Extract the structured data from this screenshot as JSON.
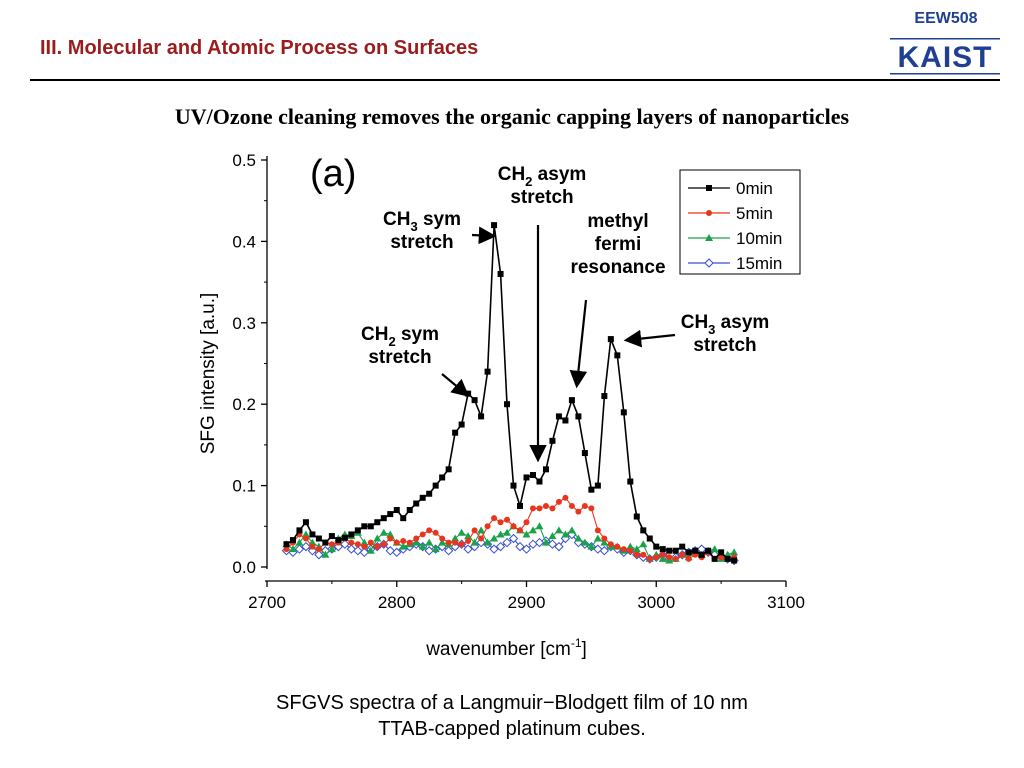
{
  "header": {
    "course_code": "EEW508",
    "logo_text": "KAIST",
    "section_title": "III. Molecular and Atomic Process on Surfaces"
  },
  "slide": {
    "heading": "UV/Ozone cleaning removes the organic capping layers of nanoparticles",
    "caption_line1": "SFGVS spectra of a Langmuir−Blodgett film of 10 nm",
    "caption_line2": "TTAB-capped platinum cubes."
  },
  "colors": {
    "section_title": "#9b1c1c",
    "course_code": "#1f3f93",
    "logo": "#1f3f93",
    "series_0min": "#000000",
    "series_5min": "#e8351e",
    "series_10min": "#1aa24a",
    "series_15min": "#3a4fd0"
  },
  "chart_data": {
    "type": "line",
    "panel_label": "(a)",
    "xlabel": "wavenumber [cm",
    "xlabel_sup": "-1",
    "xlabel_end": "]",
    "ylabel": "SFG intensity [a.u.]",
    "xlim": [
      2700,
      3100
    ],
    "ylim": [
      0.0,
      0.5
    ],
    "x_ticks": [
      2700,
      2800,
      2900,
      3000,
      3100
    ],
    "y_ticks": [
      0.0,
      0.1,
      0.2,
      0.3,
      0.4,
      0.5
    ],
    "x_tick_labels": [
      "2700",
      "2800",
      "2900",
      "3000",
      "3100"
    ],
    "y_tick_labels": [
      "0.0",
      "0.1",
      "0.2",
      "0.3",
      "0.4",
      "0.5"
    ],
    "legend_position": "top-right",
    "series": [
      {
        "name": "0min",
        "color": "#000000",
        "marker": "square",
        "x": [
          2715,
          2720,
          2725,
          2730,
          2735,
          2740,
          2745,
          2750,
          2755,
          2760,
          2765,
          2770,
          2775,
          2780,
          2785,
          2790,
          2795,
          2800,
          2805,
          2810,
          2815,
          2820,
          2825,
          2830,
          2835,
          2840,
          2845,
          2850,
          2855,
          2860,
          2865,
          2870,
          2875,
          2880,
          2885,
          2890,
          2895,
          2900,
          2905,
          2910,
          2915,
          2920,
          2925,
          2930,
          2935,
          2940,
          2945,
          2950,
          2955,
          2960,
          2965,
          2970,
          2975,
          2980,
          2985,
          2990,
          2995,
          3000,
          3005,
          3010,
          3015,
          3020,
          3025,
          3030,
          3035,
          3040,
          3045,
          3050,
          3055,
          3060
        ],
        "y": [
          0.028,
          0.033,
          0.045,
          0.055,
          0.04,
          0.035,
          0.03,
          0.038,
          0.033,
          0.036,
          0.04,
          0.045,
          0.05,
          0.05,
          0.055,
          0.06,
          0.065,
          0.07,
          0.06,
          0.07,
          0.078,
          0.085,
          0.09,
          0.1,
          0.11,
          0.12,
          0.165,
          0.175,
          0.213,
          0.205,
          0.185,
          0.24,
          0.42,
          0.36,
          0.2,
          0.1,
          0.075,
          0.11,
          0.113,
          0.105,
          0.12,
          0.155,
          0.185,
          0.18,
          0.205,
          0.185,
          0.14,
          0.095,
          0.1,
          0.21,
          0.28,
          0.26,
          0.19,
          0.105,
          0.062,
          0.045,
          0.035,
          0.025,
          0.022,
          0.02,
          0.02,
          0.025,
          0.018,
          0.02,
          0.015,
          0.02,
          0.01,
          0.018,
          0.01,
          0.008
        ]
      },
      {
        "name": "5min",
        "color": "#e8351e",
        "marker": "circle",
        "x": [
          2715,
          2720,
          2725,
          2730,
          2735,
          2740,
          2745,
          2750,
          2755,
          2760,
          2765,
          2770,
          2775,
          2780,
          2785,
          2790,
          2795,
          2800,
          2805,
          2810,
          2815,
          2820,
          2825,
          2830,
          2835,
          2840,
          2845,
          2850,
          2855,
          2860,
          2865,
          2870,
          2875,
          2880,
          2885,
          2890,
          2895,
          2900,
          2905,
          2910,
          2915,
          2920,
          2925,
          2930,
          2935,
          2940,
          2945,
          2950,
          2955,
          2960,
          2965,
          2970,
          2975,
          2980,
          2985,
          2990,
          2995,
          3000,
          3005,
          3010,
          3015,
          3020,
          3025,
          3030,
          3035,
          3040,
          3045,
          3050,
          3055,
          3060
        ],
        "y": [
          0.022,
          0.03,
          0.04,
          0.035,
          0.025,
          0.022,
          0.03,
          0.028,
          0.03,
          0.035,
          0.03,
          0.028,
          0.025,
          0.03,
          0.025,
          0.028,
          0.035,
          0.03,
          0.032,
          0.03,
          0.035,
          0.04,
          0.045,
          0.042,
          0.035,
          0.03,
          0.03,
          0.028,
          0.032,
          0.045,
          0.035,
          0.05,
          0.06,
          0.055,
          0.058,
          0.05,
          0.045,
          0.055,
          0.072,
          0.072,
          0.075,
          0.072,
          0.08,
          0.085,
          0.075,
          0.068,
          0.075,
          0.072,
          0.045,
          0.035,
          0.028,
          0.025,
          0.022,
          0.02,
          0.015,
          0.015,
          0.01,
          0.012,
          0.015,
          0.012,
          0.01,
          0.015,
          0.01,
          0.015,
          0.012,
          0.018,
          0.01,
          0.012,
          0.01,
          0.012
        ]
      },
      {
        "name": "10min",
        "color": "#1aa24a",
        "marker": "triangle",
        "x": [
          2715,
          2720,
          2725,
          2730,
          2735,
          2740,
          2745,
          2750,
          2755,
          2760,
          2765,
          2770,
          2775,
          2780,
          2785,
          2790,
          2795,
          2800,
          2805,
          2810,
          2815,
          2820,
          2825,
          2830,
          2835,
          2840,
          2845,
          2850,
          2855,
          2860,
          2865,
          2870,
          2875,
          2880,
          2885,
          2890,
          2895,
          2900,
          2905,
          2910,
          2915,
          2920,
          2925,
          2930,
          2935,
          2940,
          2945,
          2950,
          2955,
          2960,
          2965,
          2970,
          2975,
          2980,
          2985,
          2990,
          2995,
          3000,
          3005,
          3010,
          3015,
          3020,
          3025,
          3030,
          3035,
          3040,
          3045,
          3050,
          3055,
          3060
        ],
        "y": [
          0.028,
          0.022,
          0.03,
          0.04,
          0.03,
          0.025,
          0.015,
          0.022,
          0.035,
          0.04,
          0.038,
          0.042,
          0.03,
          0.02,
          0.035,
          0.042,
          0.04,
          0.03,
          0.025,
          0.028,
          0.03,
          0.025,
          0.03,
          0.022,
          0.03,
          0.028,
          0.035,
          0.042,
          0.038,
          0.03,
          0.045,
          0.03,
          0.035,
          0.04,
          0.042,
          0.05,
          0.045,
          0.04,
          0.045,
          0.05,
          0.03,
          0.038,
          0.045,
          0.04,
          0.045,
          0.035,
          0.03,
          0.025,
          0.035,
          0.03,
          0.025,
          0.025,
          0.02,
          0.025,
          0.022,
          0.028,
          0.01,
          0.015,
          0.01,
          0.008,
          0.01,
          0.015,
          0.012,
          0.018,
          0.015,
          0.02,
          0.022,
          0.01,
          0.015,
          0.018
        ]
      },
      {
        "name": "15min",
        "color": "#3a4fd0",
        "marker": "diamond",
        "x": [
          2715,
          2720,
          2725,
          2730,
          2735,
          2740,
          2745,
          2750,
          2755,
          2760,
          2765,
          2770,
          2775,
          2780,
          2785,
          2790,
          2795,
          2800,
          2805,
          2810,
          2815,
          2820,
          2825,
          2830,
          2835,
          2840,
          2845,
          2850,
          2855,
          2860,
          2865,
          2870,
          2875,
          2880,
          2885,
          2890,
          2895,
          2900,
          2905,
          2910,
          2915,
          2920,
          2925,
          2930,
          2935,
          2940,
          2945,
          2950,
          2955,
          2960,
          2965,
          2970,
          2975,
          2980,
          2985,
          2990,
          2995,
          3000,
          3005,
          3010,
          3015,
          3020,
          3025,
          3030,
          3035,
          3040,
          3045,
          3050,
          3055,
          3060
        ],
        "y": [
          0.02,
          0.018,
          0.022,
          0.025,
          0.02,
          0.015,
          0.02,
          0.022,
          0.025,
          0.028,
          0.022,
          0.02,
          0.018,
          0.022,
          0.025,
          0.028,
          0.02,
          0.018,
          0.022,
          0.025,
          0.028,
          0.025,
          0.02,
          0.022,
          0.025,
          0.02,
          0.025,
          0.028,
          0.022,
          0.025,
          0.03,
          0.028,
          0.022,
          0.025,
          0.03,
          0.035,
          0.025,
          0.022,
          0.028,
          0.03,
          0.032,
          0.028,
          0.025,
          0.035,
          0.04,
          0.03,
          0.028,
          0.025,
          0.022,
          0.02,
          0.025,
          0.022,
          0.018,
          0.02,
          0.015,
          0.012,
          0.01,
          0.012,
          0.015,
          0.01,
          0.012,
          0.015,
          0.018,
          0.02,
          0.022,
          0.018,
          0.015,
          0.012,
          0.01,
          0.008
        ]
      }
    ],
    "annotations": [
      {
        "line1": "CH",
        "sub": "3",
        "line1_end": " sym",
        "line2": "stretch"
      },
      {
        "line1": "CH",
        "sub": "2",
        "line1_end": " asym",
        "line2": "stretch"
      },
      {
        "line1": "methyl",
        "sub": "",
        "line1_end": "",
        "line2": "fermi",
        "line3": "resonance"
      },
      {
        "line1": "CH",
        "sub": "2",
        "line1_end": " sym",
        "line2": "stretch"
      },
      {
        "line1": "CH",
        "sub": "3",
        "line1_end": " asym",
        "line2": "stretch"
      }
    ]
  }
}
